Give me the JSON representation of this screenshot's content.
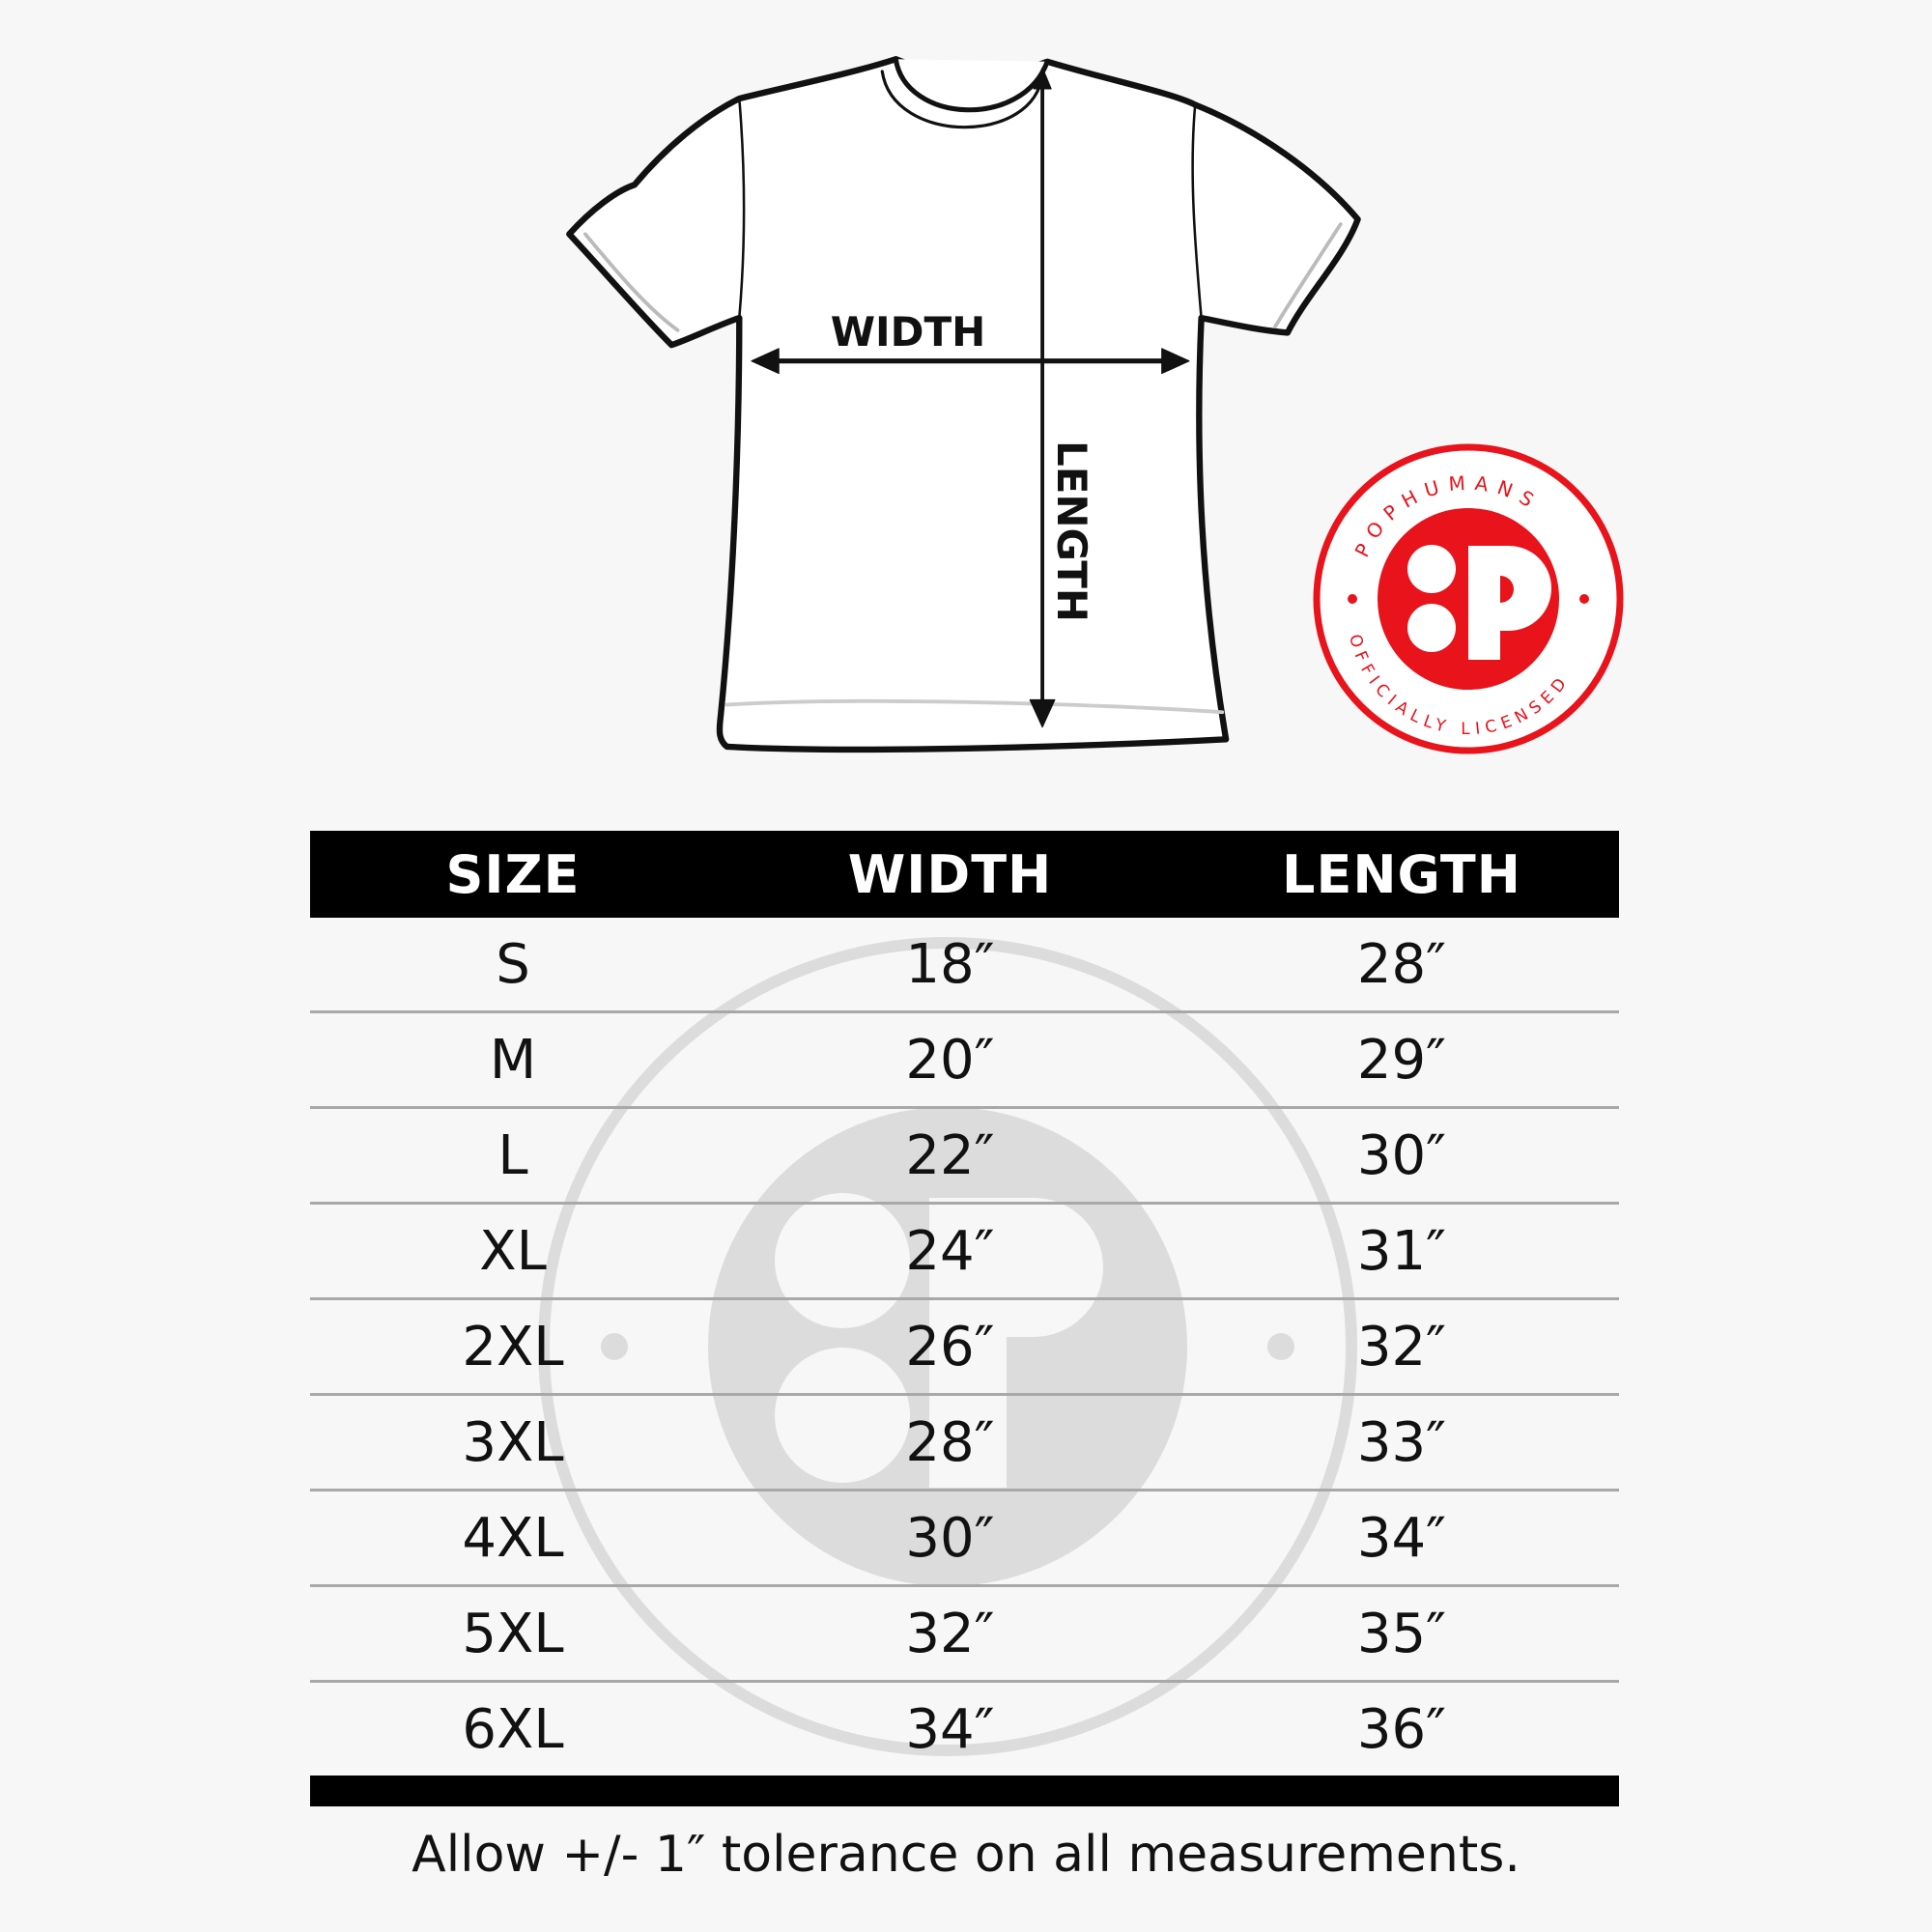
{
  "diagram": {
    "width_label": "WIDTH",
    "length_label": "LENGTH"
  },
  "logo": {
    "top_text": "POPHUMANS",
    "bottom_text": "OFFICIALLY LICENSED",
    "letter": "P",
    "color": "#e8131b"
  },
  "table": {
    "headers": [
      "SIZE",
      "WIDTH",
      "LENGTH"
    ],
    "rows": [
      [
        "S",
        "18″",
        "28″"
      ],
      [
        "M",
        "20″",
        "29″"
      ],
      [
        "L",
        "22″",
        "30″"
      ],
      [
        "XL",
        "24″",
        "31″"
      ],
      [
        "2XL",
        "26″",
        "32″"
      ],
      [
        "3XL",
        "28″",
        "33″"
      ],
      [
        "4XL",
        "30″",
        "34″"
      ],
      [
        "5XL",
        "32″",
        "35″"
      ],
      [
        "6XL",
        "34″",
        "36″"
      ]
    ]
  },
  "footer": "Allow +/- 1″ tolerance on all measurements."
}
